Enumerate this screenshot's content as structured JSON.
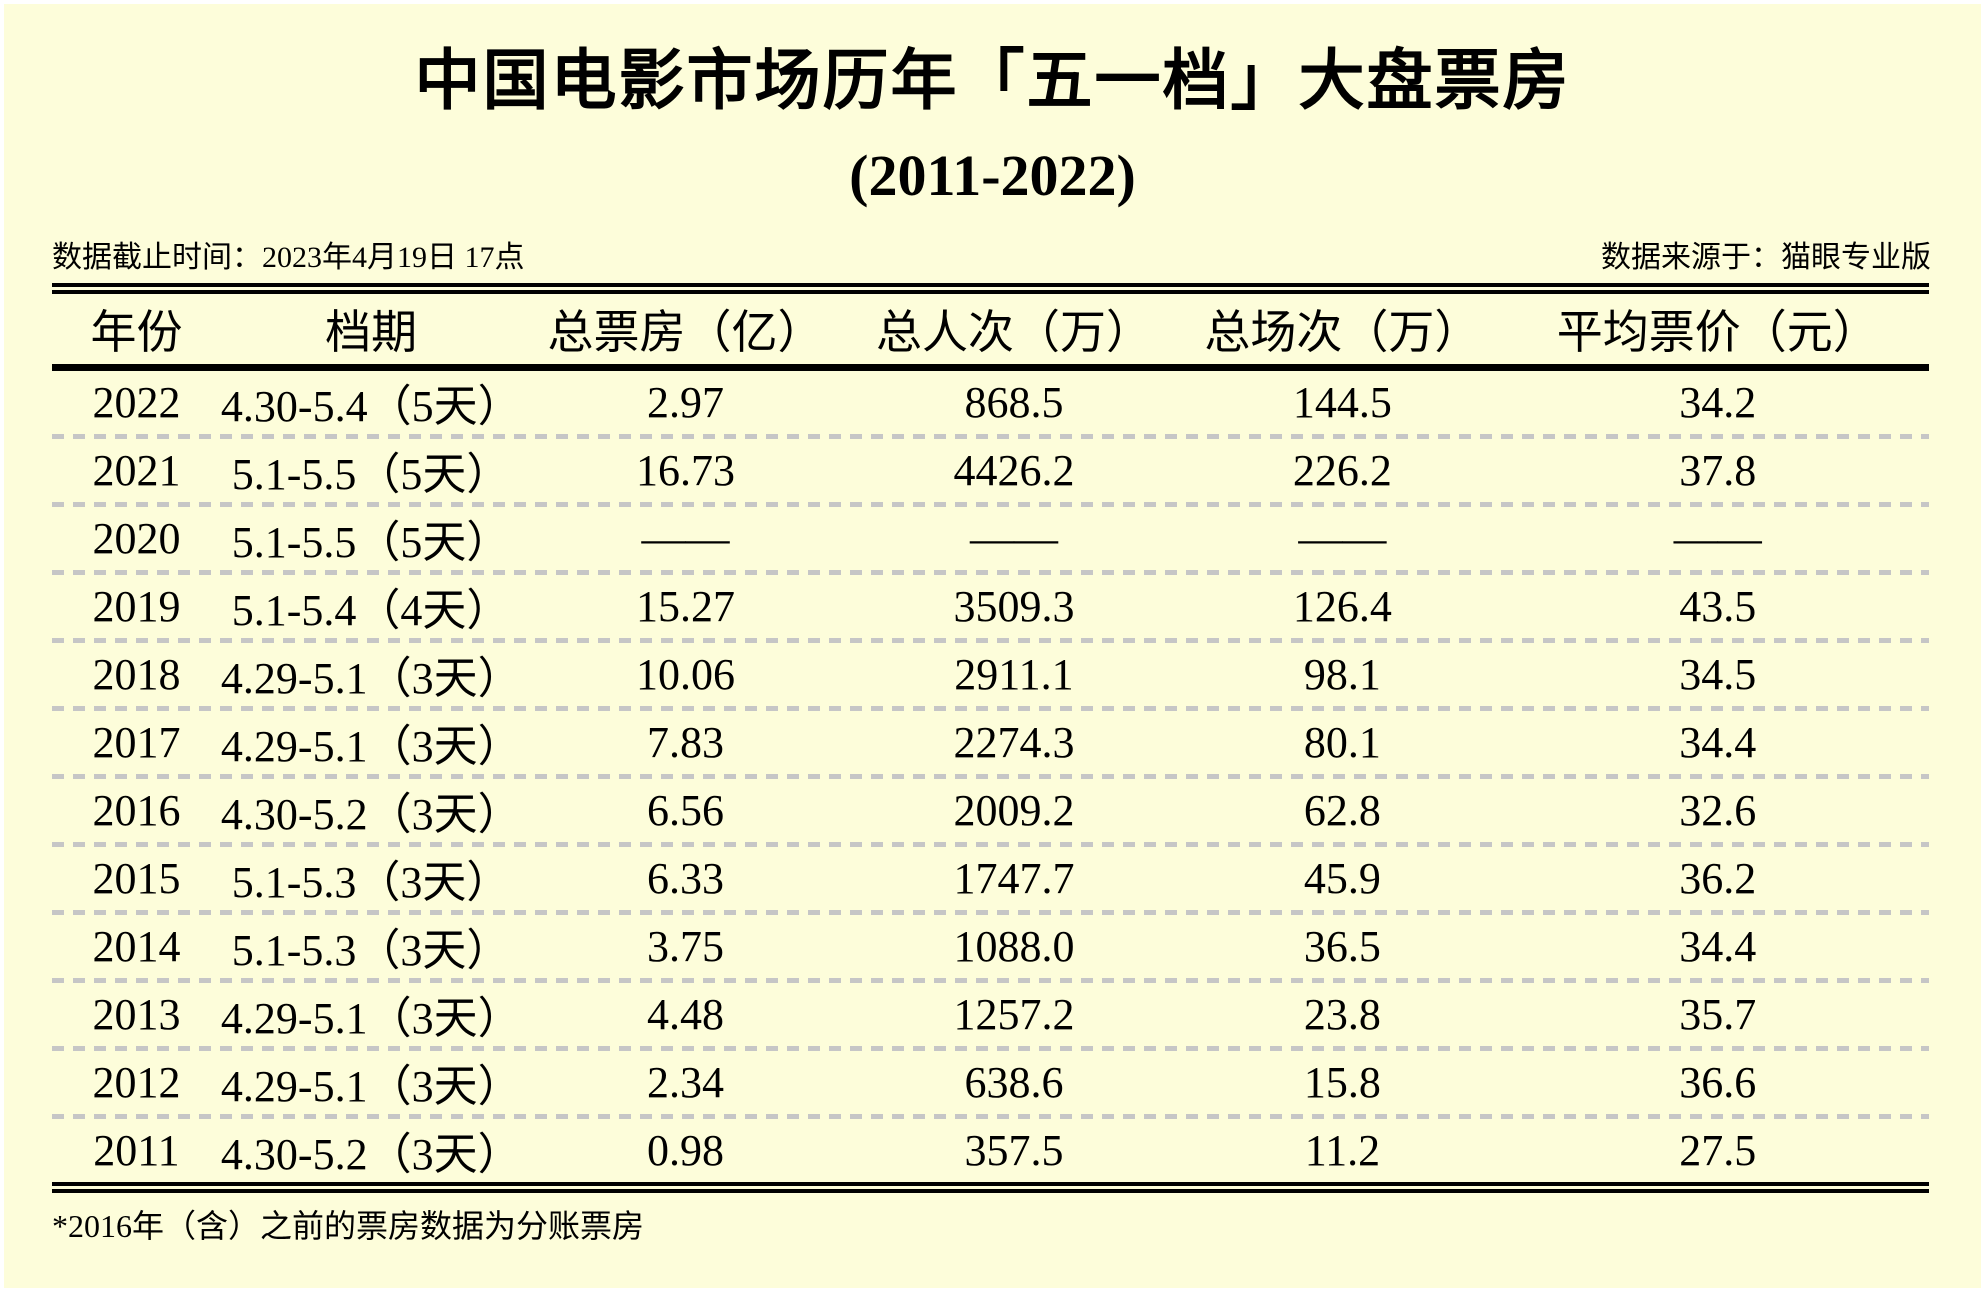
{
  "title": "中国电影市场历年「五一档」大盘票房",
  "subtitle": "(2011-2022)",
  "meta": {
    "cutoff": "数据截止时间：2023年4月19日 17点",
    "source": "数据来源于：猫眼专业版"
  },
  "table": {
    "headers": [
      "年份",
      "档期",
      "总票房（亿）",
      "总人次（万）",
      "总场次（万）",
      "平均票价（元）"
    ],
    "rows": [
      [
        "2022",
        "4.30-5.4（5天）",
        "2.97",
        "868.5",
        "144.5",
        "34.2"
      ],
      [
        "2021",
        "5.1-5.5（5天）",
        "16.73",
        "4426.2",
        "226.2",
        "37.8"
      ],
      [
        "2020",
        "5.1-5.5（5天）",
        "——",
        "——",
        "——",
        "——"
      ],
      [
        "2019",
        "5.1-5.4（4天）",
        "15.27",
        "3509.3",
        "126.4",
        "43.5"
      ],
      [
        "2018",
        "4.29-5.1（3天）",
        "10.06",
        "2911.1",
        "98.1",
        "34.5"
      ],
      [
        "2017",
        "4.29-5.1（3天）",
        "7.83",
        "2274.3",
        "80.1",
        "34.4"
      ],
      [
        "2016",
        "4.30-5.2（3天）",
        "6.56",
        "2009.2",
        "62.8",
        "32.6"
      ],
      [
        "2015",
        "5.1-5.3（3天）",
        "6.33",
        "1747.7",
        "45.9",
        "36.2"
      ],
      [
        "2014",
        "5.1-5.3（3天）",
        "3.75",
        "1088.0",
        "36.5",
        "34.4"
      ],
      [
        "2013",
        "4.29-5.1（3天）",
        "4.48",
        "1257.2",
        "23.8",
        "35.7"
      ],
      [
        "2012",
        "4.29-5.1（3天）",
        "2.34",
        "638.6",
        "15.8",
        "36.6"
      ],
      [
        "2011",
        "4.30-5.2（3天）",
        "0.98",
        "357.5",
        "11.2",
        "27.5"
      ]
    ]
  },
  "footnote": "*2016年（含）之前的票房数据为分账票房",
  "colors": {
    "background": "#FDFDDA",
    "rule": "#000000",
    "separator": "#C6C6C6"
  },
  "chart_data": {
    "type": "table",
    "title": "中国电影市场历年「五一档」大盘票房 (2011-2022)",
    "columns": [
      "年份",
      "档期",
      "总票房（亿）",
      "总人次（万）",
      "总场次（万）",
      "平均票价（元）"
    ],
    "rows": [
      {
        "年份": 2022,
        "档期": "4.30-5.4（5天）",
        "总票房_亿": 2.97,
        "总人次_万": 868.5,
        "总场次_万": 144.5,
        "平均票价_元": 34.2
      },
      {
        "年份": 2021,
        "档期": "5.1-5.5（5天）",
        "总票房_亿": 16.73,
        "总人次_万": 4426.2,
        "总场次_万": 226.2,
        "平均票价_元": 37.8
      },
      {
        "年份": 2020,
        "档期": "5.1-5.5（5天）",
        "总票房_亿": null,
        "总人次_万": null,
        "总场次_万": null,
        "平均票价_元": null
      },
      {
        "年份": 2019,
        "档期": "5.1-5.4（4天）",
        "总票房_亿": 15.27,
        "总人次_万": 3509.3,
        "总场次_万": 126.4,
        "平均票价_元": 43.5
      },
      {
        "年份": 2018,
        "档期": "4.29-5.1（3天）",
        "总票房_亿": 10.06,
        "总人次_万": 2911.1,
        "总场次_万": 98.1,
        "平均票价_元": 34.5
      },
      {
        "年份": 2017,
        "档期": "4.29-5.1（3天）",
        "总票房_亿": 7.83,
        "总人次_万": 2274.3,
        "总场次_万": 80.1,
        "平均票价_元": 34.4
      },
      {
        "年份": 2016,
        "档期": "4.30-5.2（3天）",
        "总票房_亿": 6.56,
        "总人次_万": 2009.2,
        "总场次_万": 62.8,
        "平均票价_元": 32.6
      },
      {
        "年份": 2015,
        "档期": "5.1-5.3（3天）",
        "总票房_亿": 6.33,
        "总人次_万": 1747.7,
        "总场次_万": 45.9,
        "平均票价_元": 36.2
      },
      {
        "年份": 2014,
        "档期": "5.1-5.3（3天）",
        "总票房_亿": 3.75,
        "总人次_万": 1088.0,
        "总场次_万": 36.5,
        "平均票价_元": 34.4
      },
      {
        "年份": 2013,
        "档期": "4.29-5.1（3天）",
        "总票房_亿": 4.48,
        "总人次_万": 1257.2,
        "总场次_万": 23.8,
        "平均票价_元": 35.7
      },
      {
        "年份": 2012,
        "档期": "4.29-5.1（3天）",
        "总票房_亿": 2.34,
        "总人次_万": 638.6,
        "总场次_万": 15.8,
        "平均票价_元": 36.6
      },
      {
        "年份": 2011,
        "档期": "4.30-5.2（3天）",
        "总票房_亿": 0.98,
        "总人次_万": 357.5,
        "总场次_万": 11.2,
        "平均票价_元": 27.5
      }
    ],
    "notes": [
      "2020年无数据（——）",
      "*2016年（含）之前的票房数据为分账票房"
    ],
    "data_cutoff": "2023年4月19日 17点",
    "source": "猫眼专业版"
  }
}
